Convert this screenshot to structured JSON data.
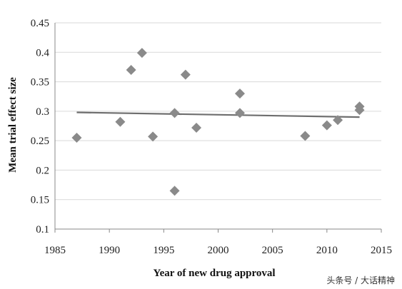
{
  "chart_data": {
    "type": "scatter",
    "title": "",
    "xlabel": "Year of new drug approval",
    "ylabel": "Mean trial effect size",
    "xlim": [
      1985,
      2015
    ],
    "ylim": [
      0.1,
      0.45
    ],
    "x_ticks": [
      1985,
      1990,
      1995,
      2000,
      2005,
      2010,
      2015
    ],
    "y_ticks": [
      0.1,
      0.15,
      0.2,
      0.25,
      0.3,
      0.35,
      0.4,
      0.45
    ],
    "y_tick_labels": [
      "0.1",
      "0.15",
      "0.2",
      "0.25",
      "0.3",
      "0.35",
      "0.4",
      "0.45"
    ],
    "grid": "horizontal",
    "legend": "none",
    "points": [
      {
        "x": 1987,
        "y": 0.255
      },
      {
        "x": 1991,
        "y": 0.282
      },
      {
        "x": 1992,
        "y": 0.37
      },
      {
        "x": 1993,
        "y": 0.399
      },
      {
        "x": 1994,
        "y": 0.257
      },
      {
        "x": 1996,
        "y": 0.297
      },
      {
        "x": 1996,
        "y": 0.165
      },
      {
        "x": 1997,
        "y": 0.362
      },
      {
        "x": 1998,
        "y": 0.272
      },
      {
        "x": 2002,
        "y": 0.33
      },
      {
        "x": 2002,
        "y": 0.297
      },
      {
        "x": 2008,
        "y": 0.258
      },
      {
        "x": 2010,
        "y": 0.276
      },
      {
        "x": 2011,
        "y": 0.285
      },
      {
        "x": 2013,
        "y": 0.308
      },
      {
        "x": 2013,
        "y": 0.302
      }
    ],
    "trendline": {
      "x": [
        1987,
        2013
      ],
      "y": [
        0.298,
        0.29
      ]
    },
    "colors": {
      "marker": "#8a8a8a",
      "trendline": "#6e6e6e",
      "grid": "#d9d9d9",
      "axis": "#888888"
    }
  },
  "watermark": {
    "text": "头条号 / 大话精神"
  }
}
